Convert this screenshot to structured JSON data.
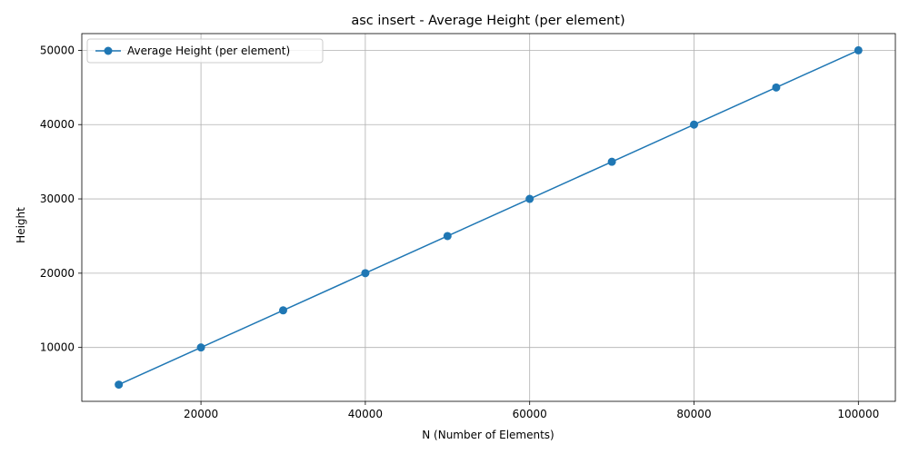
{
  "chart_data": {
    "type": "line",
    "title": "asc insert - Average Height (per element)",
    "xlabel": "N (Number of Elements)",
    "ylabel": "Height",
    "xlim": [
      5500,
      104500
    ],
    "ylim": [
      2750,
      52250
    ],
    "xticks": [
      20000,
      40000,
      60000,
      80000,
      100000
    ],
    "yticks": [
      10000,
      20000,
      30000,
      40000,
      50000
    ],
    "grid": true,
    "legend_position": "upper-left",
    "series": [
      {
        "name": "Average Height (per element)",
        "color": "#1f77b4",
        "marker": "circle",
        "x": [
          10000,
          20000,
          30000,
          40000,
          50000,
          60000,
          70000,
          80000,
          90000,
          100000
        ],
        "y": [
          5000,
          10000,
          15000,
          20000,
          25000,
          30000,
          35000,
          40000,
          45000,
          50000
        ]
      }
    ]
  }
}
